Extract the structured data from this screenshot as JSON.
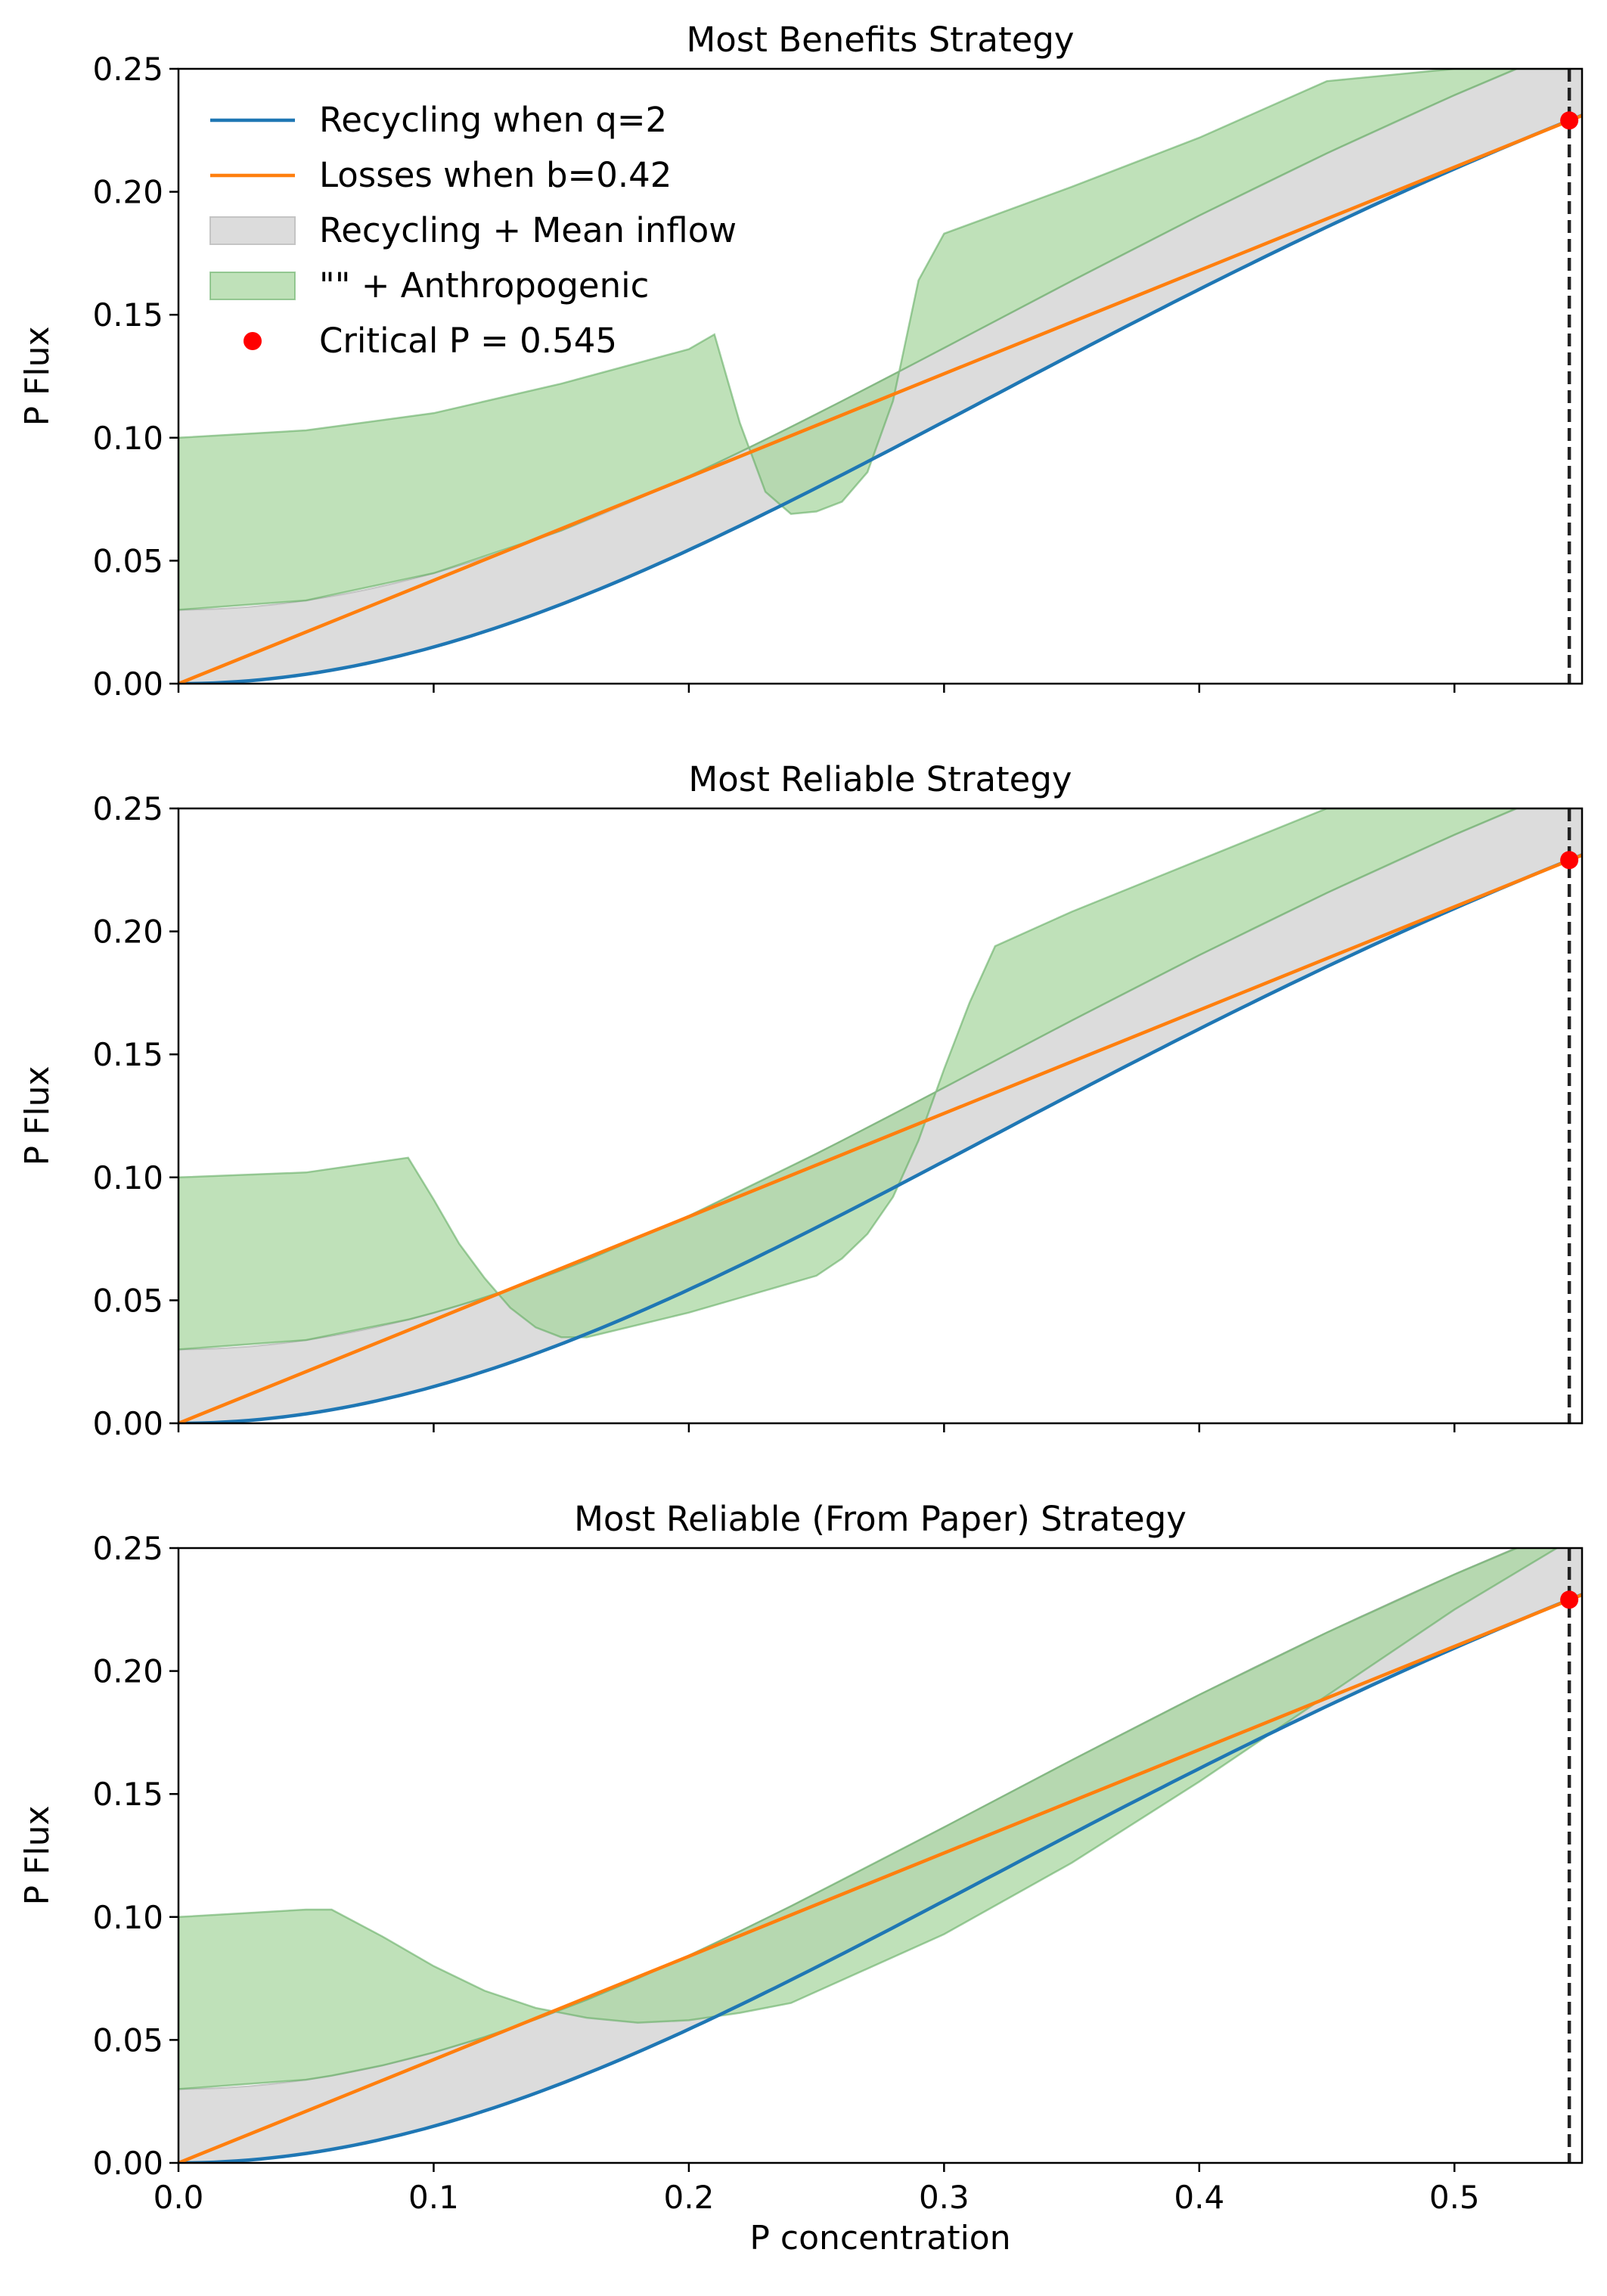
{
  "colors": {
    "recycling": "#1f77b4",
    "losses": "#ff7f0e",
    "mean_inflow_fill": "#dcdcdc",
    "mean_inflow_edge": "#c4c4c4",
    "anthro_fill": "#aad7a2",
    "anthro_edge": "#5aa85a",
    "critical": "#ff0000",
    "critical_line": "#222222"
  },
  "legend": {
    "location": "upper-left",
    "items": [
      {
        "label": "Recycling when q=2",
        "kind": "line",
        "color": "#1f77b4"
      },
      {
        "label": "Losses when b=0.42",
        "kind": "line",
        "color": "#ff7f0e"
      },
      {
        "label": "Recycling + Mean inflow",
        "kind": "patch-grey"
      },
      {
        "label": "\"\" + Anthropogenic",
        "kind": "patch-green"
      },
      {
        "label": "Critical P = 0.545",
        "kind": "dot",
        "color": "#ff0000"
      }
    ]
  },
  "chart_data": [
    {
      "type": "area",
      "title": "Most Benefits Strategy",
      "xlabel": "",
      "ylabel": "P Flux",
      "xlim": [
        0,
        0.55
      ],
      "ylim": [
        0,
        0.25
      ],
      "xticks": [
        0.0,
        0.1,
        0.2,
        0.3,
        0.4,
        0.5
      ],
      "yticks": [
        "0.00",
        "0.05",
        "0.10",
        "0.15",
        "0.20",
        "0.25"
      ],
      "show_xtick_labels": false,
      "show_legend": true,
      "series": [
        {
          "name": "Recycling when q=2",
          "kind": "recycling_curve",
          "q": 2,
          "scale": 0.229,
          "p_critical": 0.545
        },
        {
          "name": "Losses when b=0.42",
          "kind": "losses_line",
          "b": 0.42
        },
        {
          "name": "Recycling + Mean inflow",
          "kind": "band",
          "mean_inflow": 0.03
        },
        {
          "name": "\"\" + Anthropogenic",
          "kind": "band_top",
          "x": [
            0.0,
            0.05,
            0.1,
            0.15,
            0.2,
            0.21,
            0.22,
            0.23,
            0.24,
            0.25,
            0.26,
            0.27,
            0.28,
            0.29,
            0.3,
            0.35,
            0.4,
            0.45,
            0.5,
            0.545
          ],
          "y": [
            0.1,
            0.103,
            0.11,
            0.122,
            0.136,
            0.142,
            0.106,
            0.078,
            0.069,
            0.07,
            0.074,
            0.086,
            0.115,
            0.164,
            0.183,
            0.202,
            0.222,
            0.245,
            0.25,
            0.25
          ]
        },
        {
          "name": "Critical P = 0.545",
          "kind": "critical_point",
          "x": 0.545,
          "y": 0.229
        }
      ]
    },
    {
      "type": "area",
      "title": "Most Reliable Strategy",
      "xlabel": "",
      "ylabel": "P Flux",
      "xlim": [
        0,
        0.55
      ],
      "ylim": [
        0,
        0.25
      ],
      "xticks": [
        0.0,
        0.1,
        0.2,
        0.3,
        0.4,
        0.5
      ],
      "yticks": [
        "0.00",
        "0.05",
        "0.10",
        "0.15",
        "0.20",
        "0.25"
      ],
      "show_xtick_labels": false,
      "show_legend": false,
      "series": [
        {
          "name": "Recycling when q=2",
          "kind": "recycling_curve",
          "q": 2,
          "scale": 0.229,
          "p_critical": 0.545
        },
        {
          "name": "Losses when b=0.42",
          "kind": "losses_line",
          "b": 0.42
        },
        {
          "name": "Recycling + Mean inflow",
          "kind": "band",
          "mean_inflow": 0.03
        },
        {
          "name": "\"\" + Anthropogenic",
          "kind": "band_top",
          "x": [
            0.0,
            0.05,
            0.09,
            0.1,
            0.11,
            0.12,
            0.13,
            0.14,
            0.15,
            0.16,
            0.2,
            0.25,
            0.26,
            0.27,
            0.28,
            0.29,
            0.3,
            0.31,
            0.32,
            0.35,
            0.4,
            0.45,
            0.5,
            0.545
          ],
          "y": [
            0.1,
            0.102,
            0.108,
            0.091,
            0.073,
            0.059,
            0.047,
            0.039,
            0.035,
            0.035,
            0.045,
            0.06,
            0.067,
            0.077,
            0.092,
            0.115,
            0.144,
            0.171,
            0.194,
            0.208,
            0.229,
            0.25,
            0.25,
            0.25
          ]
        },
        {
          "name": "Critical P = 0.545",
          "kind": "critical_point",
          "x": 0.545,
          "y": 0.229
        }
      ]
    },
    {
      "type": "area",
      "title": "Most Reliable (From Paper) Strategy",
      "xlabel": "P concentration",
      "ylabel": "P Flux",
      "xlim": [
        0,
        0.55
      ],
      "ylim": [
        0,
        0.25
      ],
      "xticks": [
        0.0,
        0.1,
        0.2,
        0.3,
        0.4,
        0.5
      ],
      "yticks": [
        "0.00",
        "0.05",
        "0.10",
        "0.15",
        "0.20",
        "0.25"
      ],
      "show_xtick_labels": true,
      "show_legend": false,
      "series": [
        {
          "name": "Recycling when q=2",
          "kind": "recycling_curve",
          "q": 2,
          "scale": 0.229,
          "p_critical": 0.545
        },
        {
          "name": "Losses when b=0.42",
          "kind": "losses_line",
          "b": 0.42
        },
        {
          "name": "Recycling + Mean inflow",
          "kind": "band",
          "mean_inflow": 0.03
        },
        {
          "name": "\"\" + Anthropogenic",
          "kind": "band_top",
          "x": [
            0.0,
            0.05,
            0.06,
            0.08,
            0.1,
            0.12,
            0.14,
            0.16,
            0.18,
            0.2,
            0.22,
            0.24,
            0.3,
            0.35,
            0.4,
            0.45,
            0.5,
            0.545
          ],
          "y": [
            0.1,
            0.103,
            0.103,
            0.092,
            0.08,
            0.07,
            0.063,
            0.059,
            0.057,
            0.058,
            0.061,
            0.065,
            0.093,
            0.122,
            0.155,
            0.19,
            0.225,
            0.253
          ]
        },
        {
          "name": "Critical P = 0.545",
          "kind": "critical_point",
          "x": 0.545,
          "y": 0.229
        }
      ]
    }
  ]
}
